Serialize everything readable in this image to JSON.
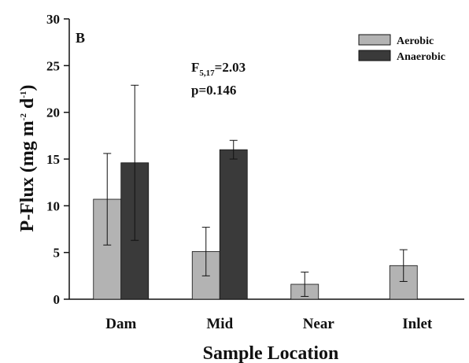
{
  "chart_data": {
    "type": "bar",
    "panel_label": "B",
    "categories": [
      "Dam",
      "Mid",
      "Near",
      "Inlet"
    ],
    "series": [
      {
        "name": "Aerobic",
        "color": "#b3b3b3",
        "values": [
          10.7,
          5.1,
          1.6,
          3.6
        ],
        "errors": [
          4.9,
          2.6,
          1.3,
          1.7
        ]
      },
      {
        "name": "Anaerobic",
        "color": "#3a3a3a",
        "values": [
          14.6,
          16.0,
          null,
          null
        ],
        "errors": [
          8.3,
          1.0,
          null,
          null
        ]
      }
    ],
    "xlabel": "Sample Location",
    "ylabel": {
      "main": "P-Flux (mg m",
      "exp1": "-2",
      "mid": " d",
      "exp2": "-1",
      "end": ")"
    },
    "ylim": [
      0,
      30
    ],
    "yticks": [
      0,
      5,
      10,
      15,
      20,
      25,
      30
    ],
    "annotation": {
      "stat_main": "F",
      "stat_sub": "5,17",
      "stat_value": "=2.03",
      "p_value": "p=0.146"
    },
    "legend_position": "top-right",
    "grid": false
  }
}
